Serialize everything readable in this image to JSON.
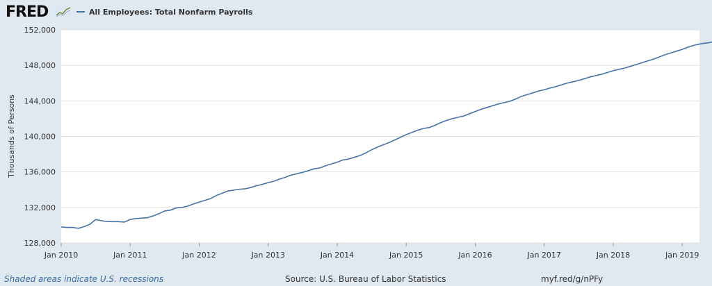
{
  "header": {
    "logo_text": "FRED",
    "logo_icon": "chart-line-icon"
  },
  "chart_data": {
    "type": "line",
    "title": "",
    "legend": [
      {
        "label": "All Employees: Total Nonfarm Payrolls",
        "color": "#4572a7"
      }
    ],
    "legend_position": "top-left",
    "ylabel": "Thousands of Persons",
    "xlabel": "",
    "ylim": [
      128000,
      152000
    ],
    "yticks": [
      128000,
      132000,
      136000,
      140000,
      144000,
      148000,
      152000
    ],
    "ytick_labels": [
      "128,000",
      "132,000",
      "136,000",
      "140,000",
      "144,000",
      "148,000",
      "152,000"
    ],
    "xlim": [
      "2010-01",
      "2019-04"
    ],
    "xticks": [
      "2010-01",
      "2011-01",
      "2012-01",
      "2013-01",
      "2014-01",
      "2015-01",
      "2016-01",
      "2017-01",
      "2018-01",
      "2019-01"
    ],
    "xtick_labels": [
      "Jan 2010",
      "Jan 2011",
      "Jan 2012",
      "Jan 2013",
      "Jan 2014",
      "Jan 2015",
      "Jan 2016",
      "Jan 2017",
      "Jan 2018",
      "Jan 2019"
    ],
    "grid": true,
    "series": [
      {
        "name": "All Employees: Total Nonfarm Payrolls",
        "color": "#4572a7",
        "start": "2010-01",
        "frequency": "monthly",
        "values": [
          129800,
          129750,
          129750,
          129650,
          129850,
          130100,
          130650,
          130500,
          130420,
          130400,
          130400,
          130350,
          130650,
          130750,
          130800,
          130850,
          131050,
          131300,
          131600,
          131700,
          131950,
          132000,
          132150,
          132400,
          132600,
          132800,
          133000,
          133350,
          133600,
          133850,
          133950,
          134050,
          134100,
          134250,
          134450,
          134600,
          134800,
          134950,
          135200,
          135400,
          135650,
          135800,
          135950,
          136150,
          136350,
          136450,
          136700,
          136900,
          137100,
          137350,
          137450,
          137650,
          137850,
          138150,
          138500,
          138800,
          139050,
          139300,
          139600,
          139900,
          140200,
          140450,
          140700,
          140900,
          141000,
          141250,
          141550,
          141800,
          142000,
          142150,
          142300,
          142550,
          142800,
          143050,
          143250,
          143450,
          143650,
          143800,
          143950,
          144200,
          144500,
          144700,
          144900,
          145100,
          145250,
          145450,
          145600,
          145800,
          146000,
          146150,
          146300,
          146500,
          146700,
          146850,
          147000,
          147200,
          147400,
          147550,
          147700,
          147900,
          148100,
          148300,
          148500,
          148700,
          148950,
          149200,
          149400,
          149600,
          149800,
          150050,
          150250,
          150400,
          150500,
          150600,
          150800,
          151000
        ]
      }
    ]
  },
  "footer": {
    "recession_note": "Shaded areas indicate U.S. recessions",
    "source": "Source: U.S. Bureau of Labor Statistics",
    "short_url": "myf.red/g/nPFy"
  }
}
